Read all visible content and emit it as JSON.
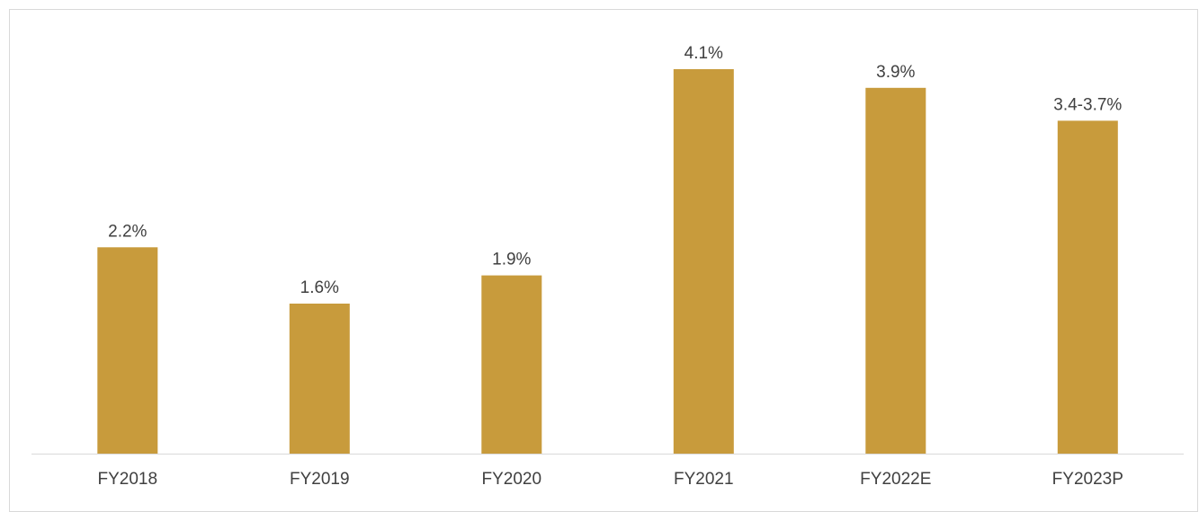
{
  "chart_data": {
    "type": "bar",
    "title": "",
    "xlabel": "",
    "ylabel": "",
    "categories": [
      "FY2018",
      "FY2019",
      "FY2020",
      "FY2021",
      "FY2022E",
      "FY2023P"
    ],
    "values": [
      2.2,
      1.6,
      1.9,
      4.1,
      3.9,
      3.55
    ],
    "data_labels": [
      "2.2%",
      "1.6%",
      "1.9%",
      "4.1%",
      "3.9%",
      "3.4-3.7%"
    ],
    "ylim": [
      0,
      4.5
    ],
    "grid": false,
    "legend": "none",
    "y_axis_visible": false,
    "bar_color": "#C89B3C",
    "axis_color": "#d9d9d9",
    "text_color": "#404040"
  }
}
